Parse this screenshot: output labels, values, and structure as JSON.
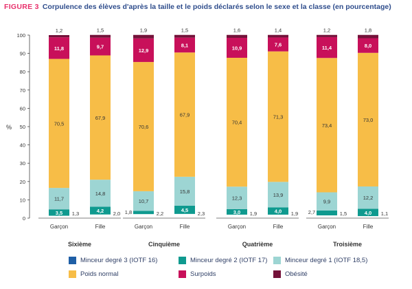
{
  "header": {
    "figure_label": "FIGURE 3",
    "title": "Corpulence des élèves d'après la taille et le poids déclarés selon le sexe et la classe (en pourcentage)"
  },
  "chart_data": {
    "type": "bar",
    "stacked": true,
    "ylabel": "%",
    "ylim": [
      0,
      100
    ],
    "yticks": [
      0,
      10,
      20,
      30,
      40,
      50,
      60,
      70,
      80,
      90,
      100
    ],
    "grid": false,
    "legend_position": "bottom",
    "groups": [
      "Sixième",
      "Cinquième",
      "Quatrième",
      "Troisième"
    ],
    "categories": [
      "Garçon",
      "Fille"
    ],
    "series": [
      {
        "name": "Minceur degré 3 (IOTF 16)",
        "color": "#1f5fa6",
        "values": [
          [
            1.3,
            2.0
          ],
          [
            2.2,
            2.3
          ],
          [
            1.9,
            1.9
          ],
          [
            1.5,
            1.1
          ]
        ],
        "labels": [
          [
            "1,3",
            "2,0"
          ],
          [
            "2,2",
            "2,3"
          ],
          [
            "1,9",
            "1,9"
          ],
          [
            "1,5",
            "1,1"
          ]
        ]
      },
      {
        "name": "Minceur degré 2 (IOTF 17)",
        "color": "#0f9a8f",
        "values": [
          [
            3.5,
            4.2
          ],
          [
            1.8,
            4.5
          ],
          [
            3.0,
            4.0
          ],
          [
            2.7,
            4.0
          ]
        ],
        "labels": [
          [
            "3,5",
            "4,2"
          ],
          [
            "1,8",
            "4,5"
          ],
          [
            "3,0",
            "4,0"
          ],
          [
            "2,7",
            "4,0"
          ]
        ]
      },
      {
        "name": "Minceur degré 1 (IOTF 18,5)",
        "color": "#9dd5d3",
        "values": [
          [
            11.7,
            14.8
          ],
          [
            10.7,
            15.8
          ],
          [
            12.3,
            13.9
          ],
          [
            9.9,
            12.2
          ]
        ],
        "labels": [
          [
            "11,7",
            "14,8"
          ],
          [
            "10,7",
            "15,8"
          ],
          [
            "12,3",
            "13,9"
          ],
          [
            "9,9",
            "12,2"
          ]
        ]
      },
      {
        "name": "Poids normal",
        "color": "#f7bd47",
        "values": [
          [
            70.5,
            67.9
          ],
          [
            70.6,
            67.9
          ],
          [
            70.4,
            71.3
          ],
          [
            73.4,
            73.0
          ]
        ],
        "labels": [
          [
            "70,5",
            "67,9"
          ],
          [
            "70,6",
            "67,9"
          ],
          [
            "70,4",
            "71,3"
          ],
          [
            "73,4",
            "73,0"
          ]
        ]
      },
      {
        "name": "Surpoids",
        "color": "#c8105a",
        "values": [
          [
            11.8,
            9.7
          ],
          [
            12.9,
            8.1
          ],
          [
            10.9,
            7.6
          ],
          [
            11.4,
            8.0
          ]
        ],
        "labels": [
          [
            "11,8",
            "9,7"
          ],
          [
            "12,9",
            "8,1"
          ],
          [
            "10,9",
            "7,6"
          ],
          [
            "11,4",
            "8,0"
          ]
        ]
      },
      {
        "name": "Obésité",
        "color": "#74123a",
        "values": [
          [
            1.2,
            1.5
          ],
          [
            1.9,
            1.5
          ],
          [
            1.6,
            1.4
          ],
          [
            1.2,
            1.8
          ]
        ],
        "labels": [
          [
            "1,2",
            "1,5"
          ],
          [
            "1,9",
            "1,5"
          ],
          [
            "1,6",
            "1,4"
          ],
          [
            "1,2",
            "1,8"
          ]
        ]
      }
    ]
  }
}
